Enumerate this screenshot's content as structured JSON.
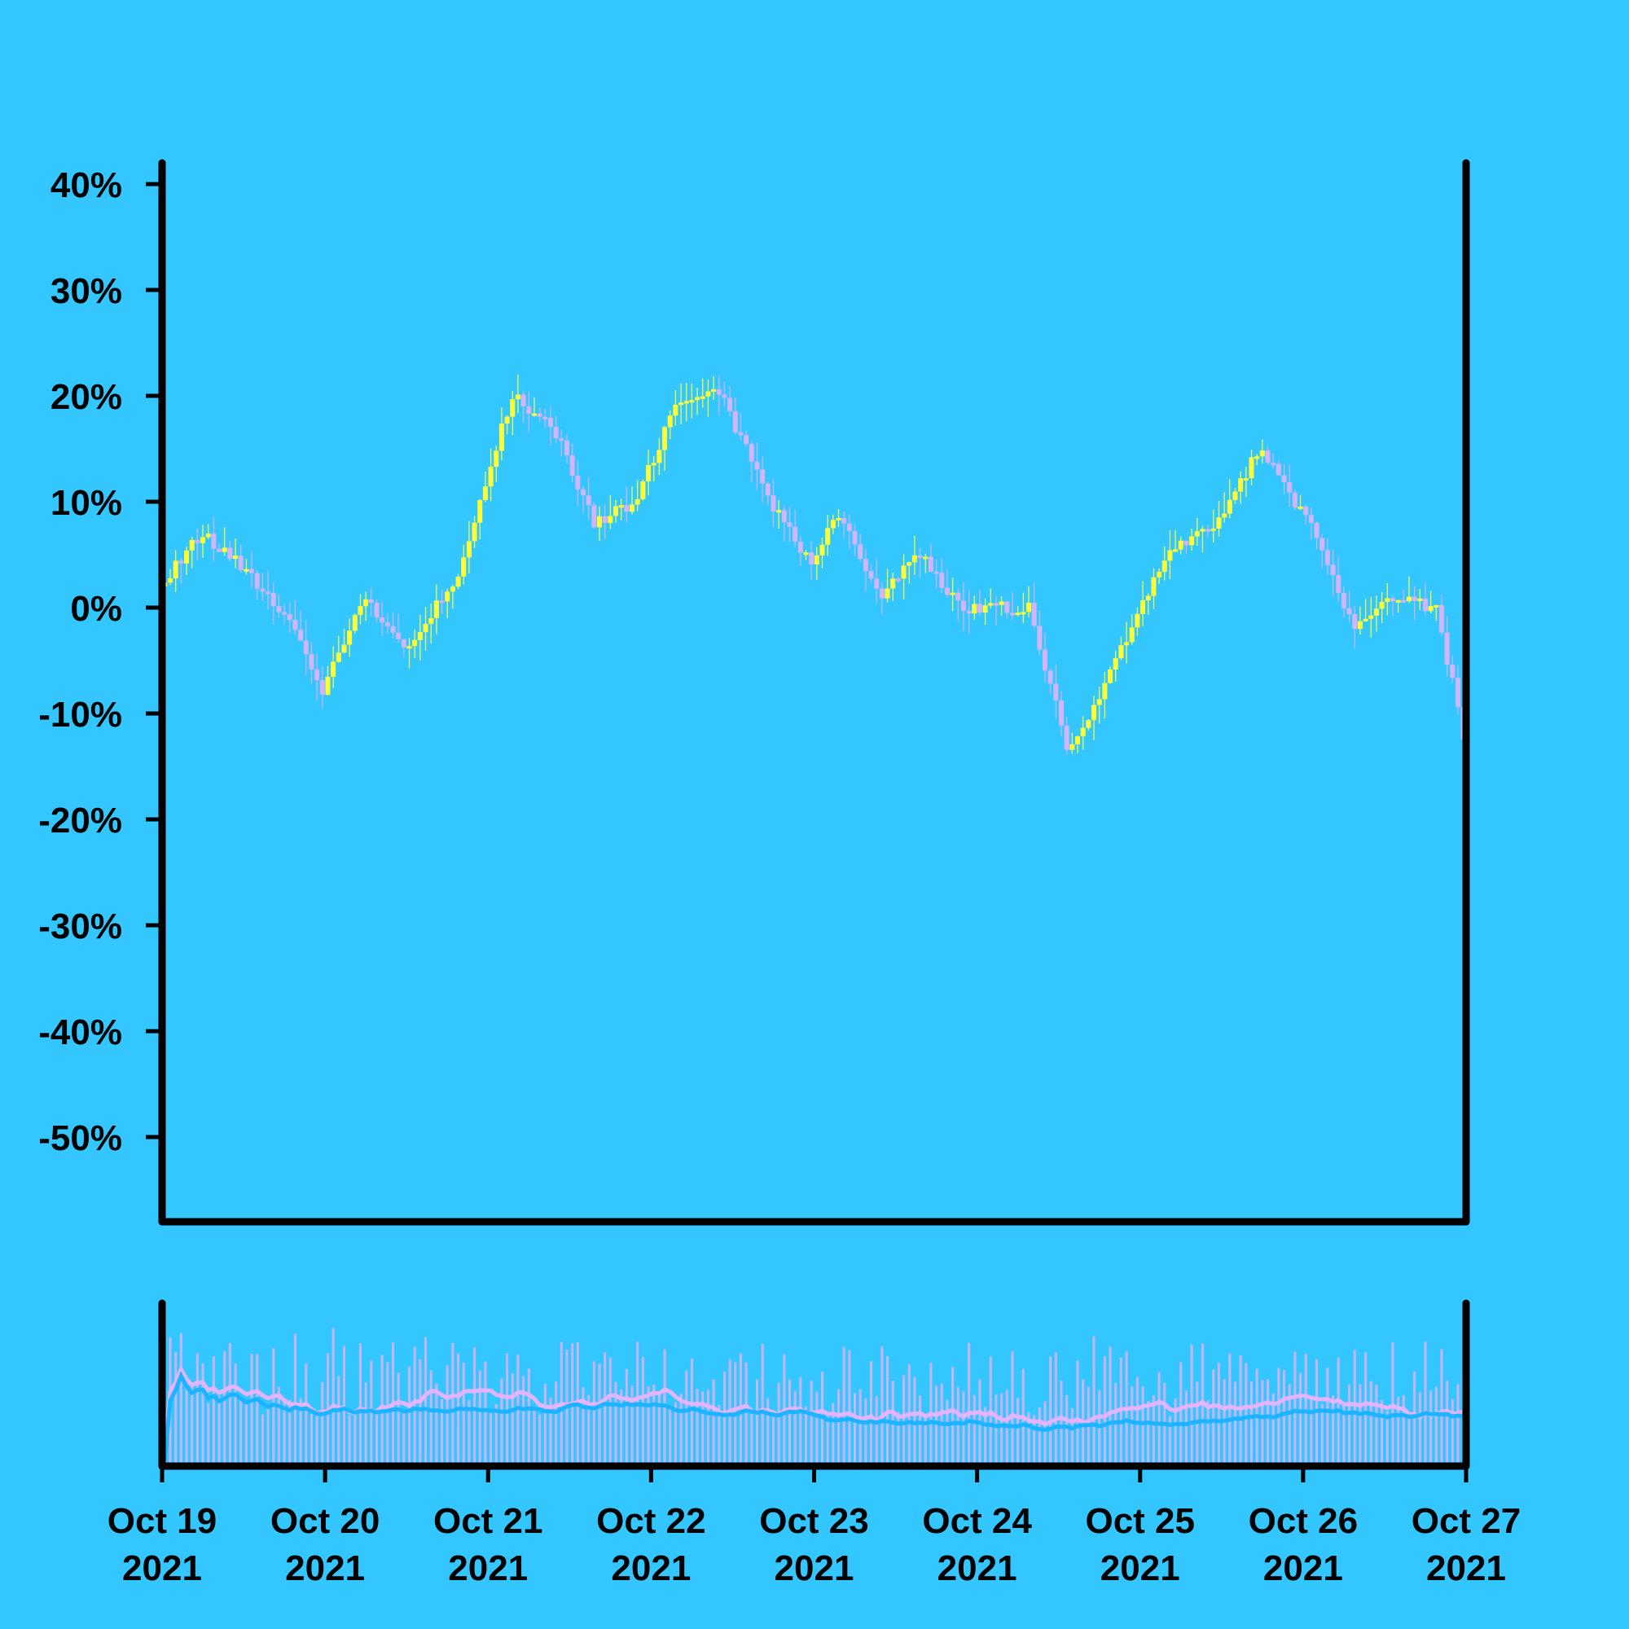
{
  "chart_data": {
    "type": "candlestick",
    "title": "",
    "xlabel": "",
    "ylabel": "",
    "x_start": "Oct 19 2021",
    "x_end": "Oct 27 2021",
    "x_tick_labels": [
      [
        "Oct 19",
        "2021"
      ],
      [
        "Oct 20",
        "2021"
      ],
      [
        "Oct 21",
        "2021"
      ],
      [
        "Oct 22",
        "2021"
      ],
      [
        "Oct 23",
        "2021"
      ],
      [
        "Oct 24",
        "2021"
      ],
      [
        "Oct 25",
        "2021"
      ],
      [
        "Oct 26",
        "2021"
      ],
      [
        "Oct 27",
        "2021"
      ]
    ],
    "y_tick_values": [
      40,
      30,
      20,
      10,
      0,
      -10,
      -20,
      -30,
      -40,
      -50
    ],
    "y_tick_labels": [
      "40%",
      "30%",
      "20%",
      "10%",
      "0%",
      "-10%",
      "-20%",
      "-30%",
      "-40%",
      "-50%"
    ],
    "ylim": [
      -58,
      42
    ],
    "y_unit": "%",
    "price_path": [
      [
        "Oct 19 2021",
        2
      ],
      [
        "Oct 19 2021 06:00",
        7
      ],
      [
        "Oct 19 2021 12:00",
        4
      ],
      [
        "Oct 19 2021 20:00",
        -2
      ],
      [
        "Oct 20 2021 00:00",
        -8
      ],
      [
        "Oct 20 2021 06:00",
        1
      ],
      [
        "Oct 20 2021 12:00",
        -4
      ],
      [
        "Oct 20 2021 20:00",
        3
      ],
      [
        "Oct 21 2021 00:00",
        12
      ],
      [
        "Oct 21 2021 04:00",
        20
      ],
      [
        "Oct 21 2021 10:00",
        17
      ],
      [
        "Oct 21 2021 16:00",
        8
      ],
      [
        "Oct 21 2021 22:00",
        10
      ],
      [
        "Oct 22 2021 04:00",
        19
      ],
      [
        "Oct 22 2021 10:00",
        21
      ],
      [
        "Oct 22 2021 18:00",
        10
      ],
      [
        "Oct 23 2021 00:00",
        4
      ],
      [
        "Oct 23 2021 04:00",
        9
      ],
      [
        "Oct 23 2021 10:00",
        1
      ],
      [
        "Oct 23 2021 16:00",
        5
      ],
      [
        "Oct 23 2021 22:00",
        0
      ],
      [
        "Oct 24 2021 08:00",
        0
      ],
      [
        "Oct 24 2021 14:00",
        -14
      ],
      [
        "Oct 24 2021 20:00",
        -6
      ],
      [
        "Oct 25 2021 04:00",
        5
      ],
      [
        "Oct 25 2021 12:00",
        8
      ],
      [
        "Oct 25 2021 18:00",
        15
      ],
      [
        "Oct 26 2021 02:00",
        7
      ],
      [
        "Oct 26 2021 08:00",
        -2
      ],
      [
        "Oct 26 2021 14:00",
        1
      ],
      [
        "Oct 26 2021 20:00",
        0
      ],
      [
        "Oct 27 2021 00:00",
        -12
      ]
    ],
    "num_candles": 240,
    "volume_moving_averages": 2,
    "colors": {
      "background": "#33c6ff",
      "up_candle": "#ffff33",
      "down_candle": "#d4b4ff",
      "volume_bar": "#c8b4ff",
      "ma_fast": "#e6b4ff",
      "ma_slow": "#1ab4ff",
      "axis": "#000000"
    }
  }
}
